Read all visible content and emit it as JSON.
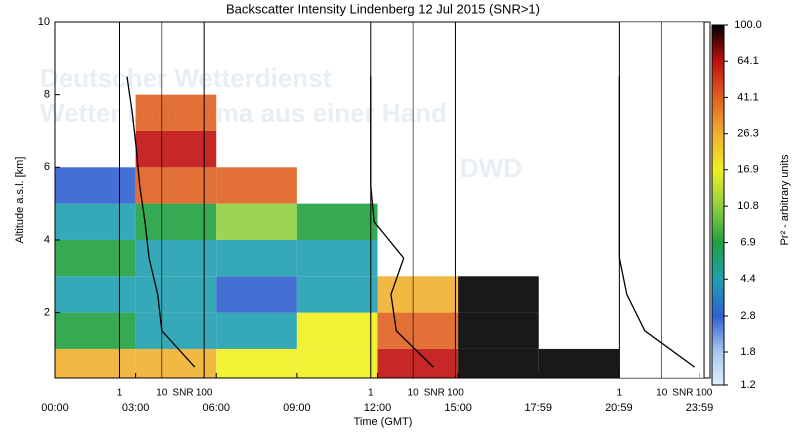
{
  "chart_data": {
    "type": "heatmap",
    "title": "Backscatter Intensity Lindenberg 12 Jul 2015 (SNR>1)",
    "xlabel": "Time (GMT)",
    "ylabel": "Altitude a.s.l. [km]",
    "colorbar_label": "Pr² - arbitrary units",
    "watermark": [
      "Deutscher Wetterdienst",
      "Wetter und Klima aus einer Hand",
      "DWD"
    ],
    "xlim": [
      0,
      24
    ],
    "xticks": [
      {
        "value": 0,
        "label": "00:00"
      },
      {
        "value": 3,
        "label": "03:00"
      },
      {
        "value": 6,
        "label": "06:00"
      },
      {
        "value": 9,
        "label": "09:00"
      },
      {
        "value": 12,
        "label": "12:00"
      },
      {
        "value": 15,
        "label": "15:00"
      },
      {
        "value": 17.98,
        "label": "17:59"
      },
      {
        "value": 20.98,
        "label": "20:59"
      },
      {
        "value": 23.98,
        "label": "23:59"
      }
    ],
    "ylim": [
      0.2,
      10
    ],
    "yticks": [
      2,
      4,
      6,
      8,
      10
    ],
    "x_edges": [
      0,
      3,
      6,
      9,
      12,
      15,
      18,
      21,
      24
    ],
    "y_edges": [
      0.2,
      1,
      2,
      3,
      4,
      5,
      6,
      7,
      8,
      9,
      10
    ],
    "z": [
      [
        26.3,
        6.9,
        4.4,
        6.9,
        4.4,
        2.8,
        null,
        null,
        null,
        null
      ],
      [
        26.3,
        4.4,
        4.4,
        4.4,
        6.9,
        41.1,
        64.1,
        41.1,
        null,
        null
      ],
      [
        16.9,
        4.4,
        2.8,
        4.4,
        10.8,
        41.1,
        null,
        null,
        null,
        null
      ],
      [
        16.9,
        16.9,
        4.4,
        4.4,
        6.9,
        null,
        null,
        null,
        null,
        null
      ],
      [
        64.1,
        41.1,
        26.3,
        null,
        null,
        null,
        null,
        null,
        null,
        null
      ],
      [
        100,
        100,
        100,
        null,
        null,
        null,
        null,
        null,
        null,
        null
      ],
      [
        100,
        null,
        null,
        null,
        null,
        null,
        null,
        null,
        null,
        null
      ],
      [
        null,
        null,
        null,
        null,
        null,
        null,
        null,
        null,
        null,
        null
      ]
    ],
    "log_colorscale": true,
    "cticks": [
      1.2,
      1.8,
      2.8,
      4.4,
      6.9,
      10.8,
      16.9,
      26.3,
      41.1,
      64.1,
      {
        "value": 100,
        "label": "100.0"
      }
    ],
    "colors": [
      "#e0f0ff",
      "#a8c8f0",
      "#3060d0",
      "#20a0b0",
      "#20a040",
      "#90d040",
      "#f0f020",
      "#f0b030",
      "#e06020",
      "#c01010",
      "#000000"
    ],
    "snr_label": "SNR",
    "snr_xlim": [
      1,
      100
    ],
    "snr_xticks": [
      1,
      10,
      100
    ],
    "snr_altitudes": [
      0.5,
      1.5,
      2.5,
      3.5,
      4.5,
      5.5,
      6.5,
      7.5,
      8.5
    ],
    "snr_profiles": [
      {
        "values": [
          60,
          10,
          8,
          5,
          4,
          3,
          2.5,
          2,
          1.5
        ]
      },
      {
        "values": [
          30,
          4,
          3,
          6,
          1.2,
          1,
          1,
          1,
          1
        ]
      },
      {
        "values": [
          60,
          4,
          1.5,
          1,
          1,
          1,
          1,
          1,
          1
        ]
      }
    ]
  }
}
